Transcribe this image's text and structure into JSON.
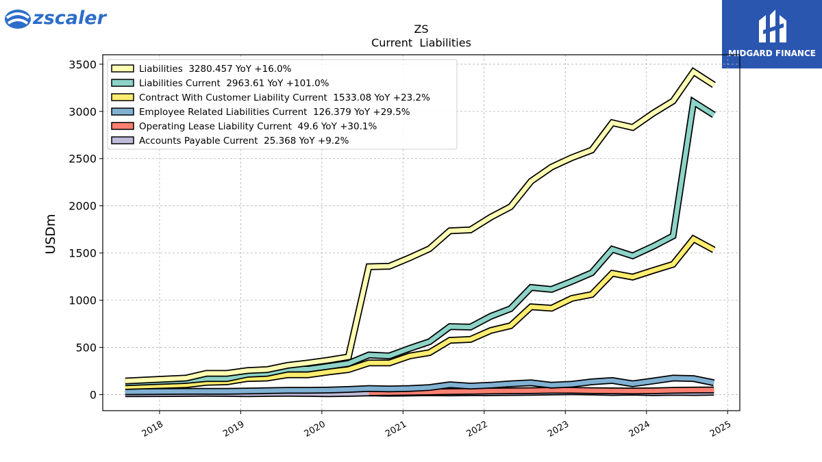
{
  "brand": {
    "left_logo_text": "zscaler",
    "right_logo_text": "MIDGARD FINANCE"
  },
  "chart_data": {
    "type": "area",
    "title": "ZS",
    "subtitle": "Current  Liabilities",
    "xlabel": "",
    "ylabel": "USDm",
    "ylim": [
      -170,
      3600
    ],
    "xlim": [
      2017.3,
      2025.15
    ],
    "yticks": [
      0,
      500,
      1000,
      1500,
      2000,
      2500,
      3000,
      3500
    ],
    "xticks": [
      "2018",
      "2019",
      "2020",
      "2021",
      "2022",
      "2023",
      "2024",
      "2025"
    ],
    "grid": true,
    "legend_position": "top-left",
    "x": [
      "2017-07-31",
      "2018-04-30",
      "2018-07-31",
      "2018-10-31",
      "2019-01-31",
      "2019-04-30",
      "2019-07-31",
      "2019-10-31",
      "2020-01-31",
      "2020-04-30",
      "2020-07-31",
      "2020-10-31",
      "2021-01-31",
      "2021-04-30",
      "2021-07-31",
      "2021-10-31",
      "2022-01-31",
      "2022-04-30",
      "2022-07-31",
      "2022-10-31",
      "2023-01-31",
      "2023-04-30",
      "2023-07-31",
      "2023-10-31",
      "2024-01-31",
      "2024-04-30",
      "2024-07-31",
      "2024-10-31"
    ],
    "series": [
      {
        "name": "Liabilities",
        "legend": "Liabilities  3280.457 YoY +16.0%",
        "color": "#ffffb3",
        "values": [
          145,
          175,
          225,
          225,
          255,
          265,
          310,
          335,
          365,
          400,
          1355,
          1360,
          1450,
          1545,
          1735,
          1745,
          1880,
          1990,
          2260,
          2410,
          2510,
          2590,
          2880,
          2830,
          2980,
          3110,
          3420,
          3280
        ]
      },
      {
        "name": "Liabilities Current",
        "legend": "Liabilities Current  2963.61 YoY +101.0%",
        "color": "#8dd3c7",
        "values": [
          125,
          150,
          170,
          170,
          215,
          225,
          270,
          270,
          300,
          330,
          420,
          410,
          490,
          560,
          720,
          715,
          830,
          910,
          1135,
          1115,
          1200,
          1290,
          1540,
          1470,
          1570,
          1680,
          3100,
          2963
        ]
      },
      {
        "name": "Contract With Customer Liability Current",
        "legend": "Contract With Customer Liability Current  1533.08 YoY +23.2%",
        "color": "#ffed6f",
        "values": [
          85,
          105,
          130,
          135,
          170,
          175,
          210,
          210,
          240,
          265,
          335,
          335,
          410,
          445,
          575,
          585,
          680,
          730,
          930,
          915,
          1020,
          1060,
          1285,
          1245,
          1315,
          1380,
          1650,
          1533
        ]
      },
      {
        "name": "Employee Related Liabilities Current",
        "legend": "Employee Related Liabilities Current  126.379 YoY +29.5%",
        "color": "#80b1d3",
        "values": [
          30,
          35,
          35,
          35,
          38,
          42,
          45,
          45,
          48,
          55,
          65,
          60,
          65,
          75,
          105,
          90,
          100,
          115,
          125,
          100,
          110,
          135,
          150,
          115,
          145,
          175,
          170,
          126
        ]
      },
      {
        "name": "Operating Lease Liability Current",
        "legend": "Operating Lease Liability Current  49.6 YoY +30.1%",
        "color": "#fb8072",
        "values": [
          null,
          null,
          null,
          null,
          null,
          null,
          null,
          null,
          null,
          null,
          20,
          22,
          25,
          28,
          32,
          35,
          38,
          40,
          42,
          45,
          45,
          42,
          40,
          38,
          40,
          45,
          48,
          50
        ]
      },
      {
        "name": "Accounts Payable Current",
        "legend": "Accounts Payable Current  25.368 YoY +9.2%",
        "color": "#bebada",
        "values": [
          10,
          12,
          14,
          12,
          10,
          12,
          14,
          12,
          10,
          12,
          18,
          14,
          16,
          20,
          18,
          20,
          20,
          22,
          24,
          28,
          30,
          28,
          22,
          26,
          20,
          24,
          22,
          25
        ]
      }
    ]
  }
}
